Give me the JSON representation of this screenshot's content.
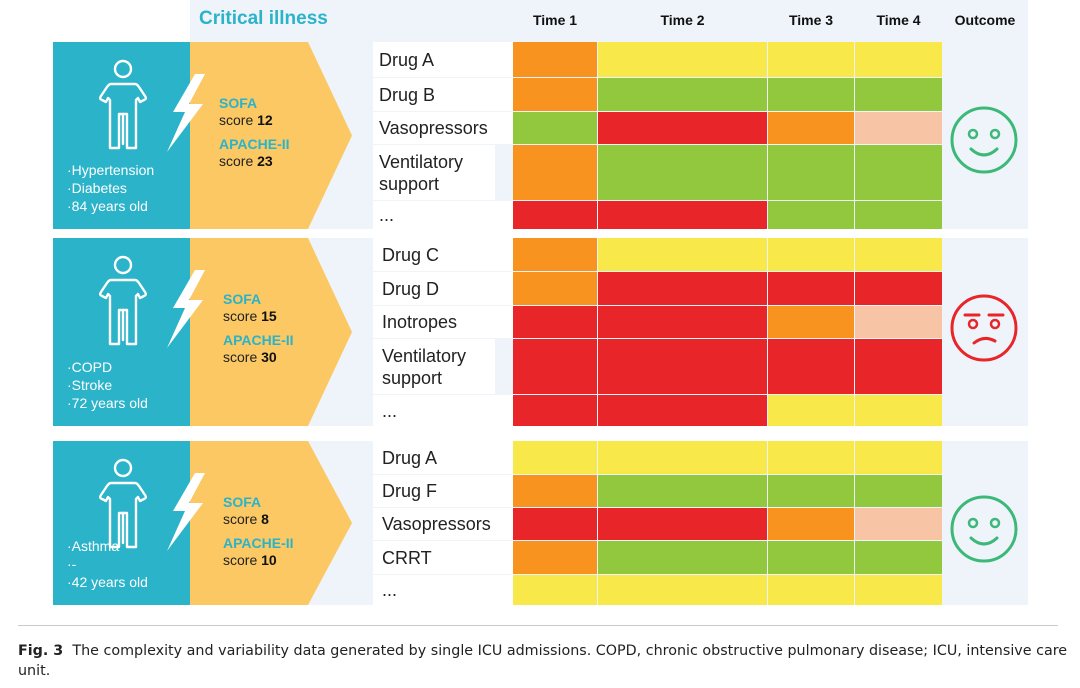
{
  "header": {
    "title": "Critical illness",
    "times": [
      "Time 1",
      "Time 2",
      "Time 3",
      "Time 4"
    ],
    "outcome": "Outcome"
  },
  "colors": {
    "orange": "#f7931e",
    "yellow": "#f9e84a",
    "green": "#92c83e",
    "red": "#e8262a",
    "peach": "#f7c4a5",
    "teal": "#2bb3c9",
    "arrow": "#fbc863",
    "good_face": "#3cb878",
    "bad_face": "#e8262a"
  },
  "patients": [
    {
      "conditions": [
        "·Hypertension",
        "·Diabetes",
        "·84 years old"
      ],
      "sofa_label": "SOFA",
      "sofa_word": "score",
      "sofa_value": "12",
      "apache_label": "APACHE-II",
      "apache_word": "score",
      "apache_value": "23",
      "outcome_icon": "smiley-face-icon",
      "drugs": [
        "Drug A",
        "Drug B",
        "Vasopressors",
        "Ventilatory support",
        "..."
      ],
      "cells": [
        [
          "orange",
          "yellow",
          "yellow",
          "yellow"
        ],
        [
          "orange",
          "green",
          "green",
          "green"
        ],
        [
          "green",
          "red",
          "orange",
          "peach"
        ],
        [
          "orange",
          "green",
          "green",
          "green"
        ],
        [
          "red",
          "red",
          "green",
          "green"
        ]
      ]
    },
    {
      "conditions": [
        "·COPD",
        "·Stroke",
        "·72 years old"
      ],
      "sofa_label": "SOFA",
      "sofa_word": "score",
      "sofa_value": "15",
      "apache_label": "APACHE-II",
      "apache_word": "score",
      "apache_value": "30",
      "outcome_icon": "sad-face-icon",
      "drugs": [
        "Drug C",
        "Drug D",
        "Inotropes",
        "Ventilatory support",
        "..."
      ],
      "cells": [
        [
          "orange",
          "yellow",
          "yellow",
          "yellow"
        ],
        [
          "orange",
          "red",
          "red",
          "red"
        ],
        [
          "red",
          "red",
          "orange",
          "peach"
        ],
        [
          "red",
          "red",
          "red",
          "red"
        ],
        [
          "red",
          "red",
          "yellow",
          "yellow"
        ]
      ]
    },
    {
      "conditions": [
        "·Asthma",
        "·-",
        "·42 years old"
      ],
      "sofa_label": "SOFA",
      "sofa_word": "score",
      "sofa_value": "8",
      "apache_label": "APACHE-II",
      "apache_word": "score",
      "apache_value": "10",
      "outcome_icon": "smiley-face-icon",
      "drugs": [
        "Drug A",
        "Drug F",
        "Vasopressors",
        "CRRT",
        "..."
      ],
      "cells": [
        [
          "yellow",
          "yellow",
          "yellow",
          "yellow"
        ],
        [
          "orange",
          "green",
          "green",
          "green"
        ],
        [
          "red",
          "red",
          "orange",
          "peach"
        ],
        [
          "orange",
          "green",
          "green",
          "green"
        ],
        [
          "yellow",
          "yellow",
          "yellow",
          "yellow"
        ]
      ]
    }
  ],
  "caption": {
    "label": "Fig. 3",
    "text": "The complexity and variability data generated by single ICU admissions. COPD, chronic obstructive pulmonary disease; ICU, intensive care unit."
  }
}
